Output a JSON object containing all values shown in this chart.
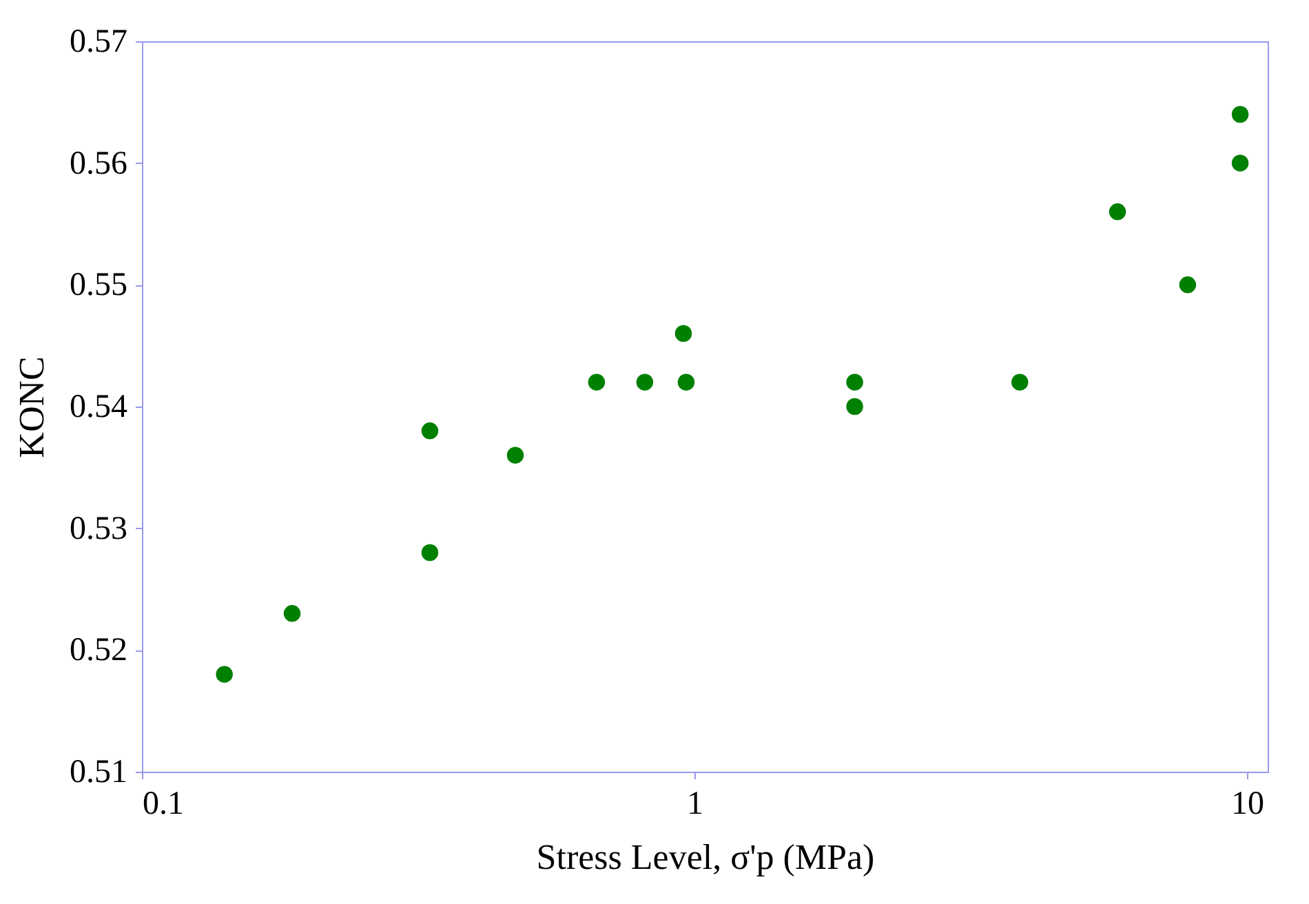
{
  "chart_data": {
    "type": "scatter",
    "xlabel": "Stress Level, σ'p (MPa)",
    "ylabel": "KONC",
    "x": [
      0.141,
      0.187,
      0.332,
      0.332,
      0.474,
      0.665,
      0.813,
      0.955,
      0.966,
      1.95,
      1.95,
      3.88,
      5.83,
      7.81,
      9.72,
      9.72
    ],
    "series": [
      {
        "color": "#008000",
        "values": [
          0.518,
          0.523,
          0.538,
          0.528,
          0.536,
          0.542,
          0.542,
          0.546,
          0.542,
          0.542,
          0.54,
          0.542,
          0.556,
          0.55,
          0.564,
          0.56
        ]
      }
    ],
    "log": "x",
    "xlim": [
      0.1,
      10.9
    ],
    "xticks": [
      0.1,
      1,
      10
    ],
    "ylim": [
      0.51,
      0.57
    ],
    "yticks": [
      0.51,
      0.52,
      0.53,
      0.54,
      0.55,
      0.56,
      0.57
    ],
    "grid": false,
    "marker": "circle"
  }
}
